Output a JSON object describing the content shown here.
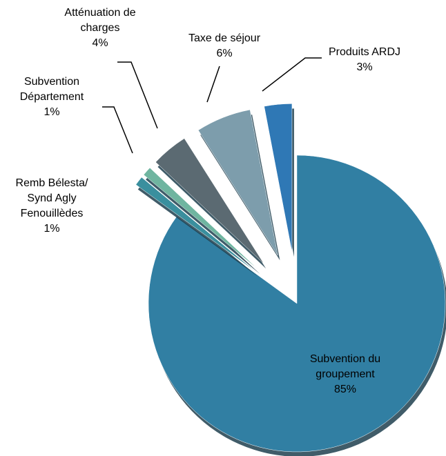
{
  "chart_data": {
    "type": "pie",
    "categories": [
      "Subvention du groupement",
      "Remb Bélesta/ Synd Agly Fenouillèdes",
      "Subvention Département",
      "Atténuation de charges",
      "Taxe de séjour",
      "Produits ARDJ"
    ],
    "values": [
      85,
      1,
      1,
      4,
      6,
      3
    ],
    "value_labels": [
      "85%",
      "1%",
      "1%",
      "4%",
      "6%",
      "3%"
    ],
    "colors": [
      "#317fa3",
      "#3a8f9e",
      "#6fb5a0",
      "#5b6a72",
      "#7d9dac",
      "#2f78b5"
    ]
  }
}
